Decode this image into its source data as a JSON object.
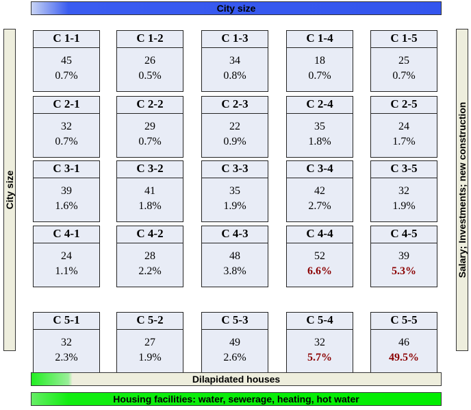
{
  "top_label": "City size",
  "left_label": "City size",
  "right_label": "Salary; Investments; new construction",
  "bottom_labels": [
    "Dilapidated houses",
    "Housing facilities: water, sewerage, heating, hot water"
  ],
  "grid": [
    [
      {
        "label": "C 1-1",
        "count": 45,
        "share": "0.7%"
      },
      {
        "label": "C 1-2",
        "count": 26,
        "share": "0.5%"
      },
      {
        "label": "C 1-3",
        "count": 34,
        "share": "0.8%"
      },
      {
        "label": "C 1-4",
        "count": 18,
        "share": "0.7%"
      },
      {
        "label": "C 1-5",
        "count": 25,
        "share": "0.7%"
      }
    ],
    [
      {
        "label": "C 2-1",
        "count": 32,
        "share": "0.7%"
      },
      {
        "label": "C 2-2",
        "count": 29,
        "share": "0.7%"
      },
      {
        "label": "C 2-3",
        "count": 22,
        "share": "0.9%"
      },
      {
        "label": "C 2-4",
        "count": 35,
        "share": "1.8%"
      },
      {
        "label": "C 2-5",
        "count": 24,
        "share": "1.7%"
      }
    ],
    [
      {
        "label": "C 3-1",
        "count": 39,
        "share": "1.6%"
      },
      {
        "label": "C 3-2",
        "count": 41,
        "share": "1.8%"
      },
      {
        "label": "C 3-3",
        "count": 35,
        "share": "1.9%"
      },
      {
        "label": "C 3-4",
        "count": 42,
        "share": "2.7%"
      },
      {
        "label": "C 3-5",
        "count": 32,
        "share": "1.9%"
      }
    ],
    [
      {
        "label": "C 4-1",
        "count": 24,
        "share": "1.1%"
      },
      {
        "label": "C 4-2",
        "count": 28,
        "share": "2.2%"
      },
      {
        "label": "C 4-3",
        "count": 48,
        "share": "3.8%"
      },
      {
        "label": "C 4-4",
        "count": 52,
        "share": "6.6%",
        "highlight": true
      },
      {
        "label": "C 4-5",
        "count": 39,
        "share": "5.3%",
        "highlight": true
      }
    ],
    [
      {
        "label": "C 5-1",
        "count": 32,
        "share": "2.3%"
      },
      {
        "label": "C 5-2",
        "count": 27,
        "share": "1.9%"
      },
      {
        "label": "C 5-3",
        "count": 49,
        "share": "2.6%"
      },
      {
        "label": "C 5-4",
        "count": 32,
        "share": "5.7%",
        "highlight": true
      },
      {
        "label": "C 5-5",
        "count": 46,
        "share": "49.5%",
        "highlight": true
      }
    ]
  ]
}
